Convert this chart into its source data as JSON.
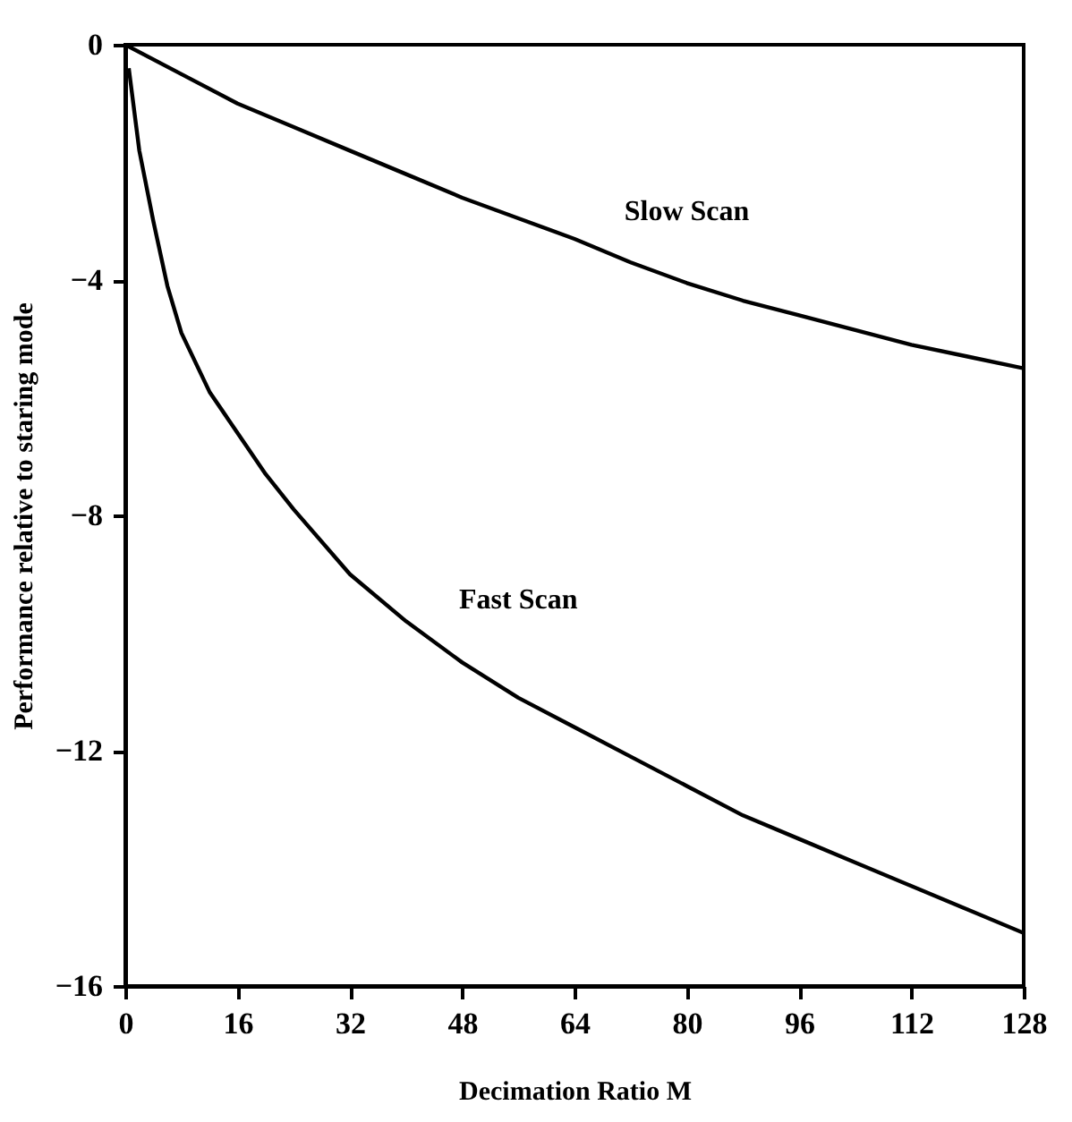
{
  "chart_data": {
    "type": "line",
    "xlabel": "Decimation Ratio M",
    "ylabel": "Performance relative to staring mode",
    "xlim": [
      0,
      128
    ],
    "ylim": [
      -16,
      0
    ],
    "xticks": [
      0,
      16,
      32,
      48,
      64,
      80,
      96,
      112,
      128
    ],
    "yticks": [
      -16,
      -12,
      -8,
      -4,
      0
    ],
    "grid": false,
    "marker": "none",
    "line_style": "solid",
    "series": [
      {
        "name": "Slow Scan",
        "color": "#000000",
        "x": [
          0,
          8,
          16,
          24,
          32,
          40,
          48,
          56,
          64,
          72,
          80,
          88,
          96,
          104,
          112,
          120,
          128
        ],
        "values": [
          0,
          -0.5,
          -1.0,
          -1.4,
          -1.8,
          -2.2,
          -2.6,
          -2.95,
          -3.3,
          -3.7,
          -4.05,
          -4.35,
          -4.6,
          -4.85,
          -5.1,
          -5.3,
          -5.5
        ]
      },
      {
        "name": "Fast Scan",
        "color": "#000000",
        "x": [
          0.5,
          2,
          4,
          6,
          8,
          12,
          16,
          20,
          24,
          32,
          40,
          48,
          56,
          64,
          72,
          80,
          88,
          96,
          104,
          112,
          120,
          128
        ],
        "values": [
          -0.4,
          -1.8,
          -3.0,
          -4.1,
          -4.9,
          -5.9,
          -6.6,
          -7.3,
          -7.9,
          -9.0,
          -9.8,
          -10.5,
          -11.1,
          -11.6,
          -12.1,
          -12.6,
          -13.1,
          -13.5,
          -13.9,
          -14.3,
          -14.7,
          -15.1
        ]
      }
    ]
  }
}
